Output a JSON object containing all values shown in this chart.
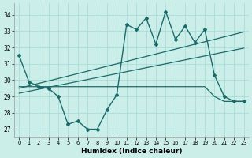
{
  "xlabel": "Humidex (Indice chaleur)",
  "background_color": "#cceee8",
  "grid_color": "#aaddda",
  "line_color": "#1a6b6b",
  "x_values": [
    0,
    1,
    2,
    3,
    4,
    5,
    6,
    7,
    8,
    9,
    10,
    11,
    12,
    13,
    14,
    15,
    16,
    17,
    18,
    19,
    20,
    21,
    22,
    23
  ],
  "y_main": [
    31.5,
    29.9,
    29.6,
    29.5,
    29.0,
    27.3,
    27.5,
    27.0,
    27.0,
    28.2,
    29.1,
    33.4,
    33.1,
    33.8,
    32.2,
    34.2,
    32.5,
    33.3,
    32.3,
    33.1,
    30.3,
    29.0,
    28.7,
    28.7
  ],
  "y_flat": [
    29.6,
    29.6,
    29.6,
    29.6,
    29.6,
    29.6,
    29.6,
    29.6,
    29.6,
    29.6,
    29.6,
    29.6,
    29.6,
    29.6,
    29.6,
    29.6,
    29.6,
    29.6,
    29.6,
    29.6,
    29.0,
    28.7,
    28.7,
    28.7
  ],
  "y_trend_high": [
    29.5,
    29.65,
    29.8,
    29.95,
    30.1,
    30.25,
    30.4,
    30.55,
    30.7,
    30.85,
    31.0,
    31.15,
    31.3,
    31.45,
    31.6,
    31.75,
    31.9,
    32.05,
    32.2,
    32.35,
    32.5,
    32.65,
    32.8,
    32.95
  ],
  "y_trend_low": [
    29.2,
    29.32,
    29.44,
    29.56,
    29.68,
    29.8,
    29.92,
    30.04,
    30.16,
    30.28,
    30.4,
    30.52,
    30.64,
    30.76,
    30.88,
    31.0,
    31.12,
    31.24,
    31.36,
    31.48,
    31.6,
    31.72,
    31.84,
    31.96
  ],
  "ylim": [
    26.5,
    34.7
  ],
  "yticks": [
    27,
    28,
    29,
    30,
    31,
    32,
    33,
    34
  ],
  "xticks": [
    0,
    1,
    2,
    3,
    4,
    5,
    6,
    7,
    8,
    9,
    10,
    11,
    12,
    13,
    14,
    15,
    16,
    17,
    18,
    19,
    20,
    21,
    22,
    23
  ]
}
